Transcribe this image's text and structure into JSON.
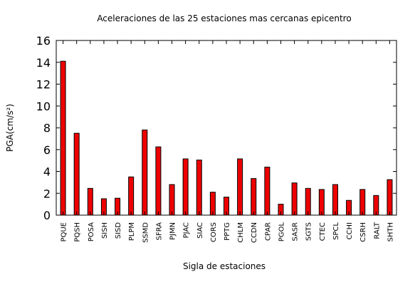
{
  "chart_data": {
    "type": "bar",
    "title": "Aceleraciones de las 25 estaciones mas cercanas epicentro",
    "xlabel": "Sigla de estaciones",
    "ylabel": "PGA(cm/s²)",
    "ylim": [
      0,
      16
    ],
    "yticks": [
      0,
      2,
      4,
      6,
      8,
      10,
      12,
      14,
      16
    ],
    "grid": false,
    "bar_color": "#ee0000",
    "categories": [
      "PQUE",
      "PQSH",
      "POSA",
      "SISH",
      "SISD",
      "PLPM",
      "SSMD",
      "SFRA",
      "PJMN",
      "PJAC",
      "SIAC",
      "CORS",
      "PPTG",
      "CHLM",
      "CCDN",
      "CPAR",
      "PGOL",
      "SASR",
      "SGTS",
      "CTEC",
      "SPCL",
      "CCHI",
      "CSRH",
      "RALT",
      "SHTH"
    ],
    "values": [
      14.1,
      7.5,
      2.45,
      1.5,
      1.55,
      3.5,
      7.8,
      6.25,
      2.8,
      5.15,
      5.05,
      2.1,
      1.65,
      5.15,
      3.35,
      4.4,
      1.0,
      2.95,
      2.45,
      2.35,
      2.8,
      1.35,
      2.35,
      1.8,
      3.25
    ]
  }
}
